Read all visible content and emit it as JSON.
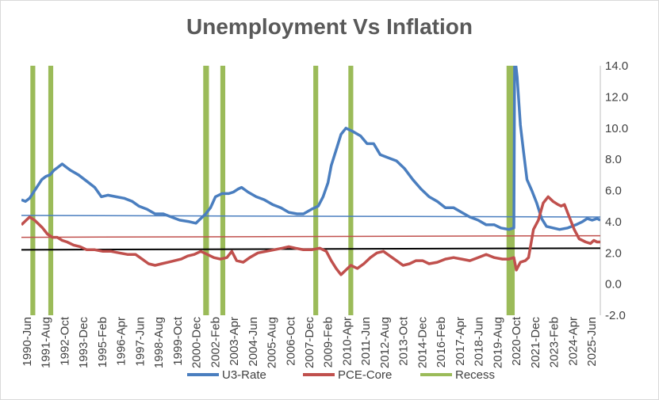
{
  "chart_data": {
    "type": "line",
    "title": "Unemployment Vs Inflation",
    "ylim": [
      -2.0,
      14.0
    ],
    "y_ticks": [
      "14.0",
      "12.0",
      "10.0",
      "8.0",
      "6.0",
      "4.0",
      "2.0",
      "0.0",
      "-2.0"
    ],
    "x_range": [
      1990.0,
      2025.5
    ],
    "x_tick_labels": [
      "1990-Jun",
      "1991-Aug",
      "1992-Oct",
      "1993-Dec",
      "1995-Feb",
      "1996-Apr",
      "1997-Jun",
      "1998-Aug",
      "1999-Oct",
      "2000-Dec",
      "2002-Feb",
      "2003-Apr",
      "2004-Jun",
      "2005-Aug",
      "2006-Oct",
      "2007-Dec",
      "2009-Feb",
      "2010-Apr",
      "2011-Jun",
      "2012-Aug",
      "2013-Oct",
      "2014-Dec",
      "2016-Feb",
      "2017-Apr",
      "2018-Jun",
      "2019-Aug",
      "2020-Oct",
      "2021-Dec",
      "2023-Feb",
      "2024-Apr",
      "2025-Jun"
    ],
    "series": [
      {
        "name": "U3-Rate",
        "color": "#4a7ebf",
        "points": [
          [
            1990.0,
            5.4
          ],
          [
            1990.25,
            5.3
          ],
          [
            1990.5,
            5.5
          ],
          [
            1990.75,
            5.9
          ],
          [
            1991.0,
            6.3
          ],
          [
            1991.25,
            6.7
          ],
          [
            1991.5,
            6.9
          ],
          [
            1991.75,
            7.0
          ],
          [
            1992.0,
            7.3
          ],
          [
            1992.25,
            7.5
          ],
          [
            1992.5,
            7.7
          ],
          [
            1992.75,
            7.5
          ],
          [
            1993.0,
            7.3
          ],
          [
            1993.5,
            7.0
          ],
          [
            1994.0,
            6.6
          ],
          [
            1994.5,
            6.2
          ],
          [
            1994.9,
            5.6
          ],
          [
            1995.3,
            5.7
          ],
          [
            1995.8,
            5.6
          ],
          [
            1996.3,
            5.5
          ],
          [
            1996.8,
            5.3
          ],
          [
            1997.2,
            5.0
          ],
          [
            1997.7,
            4.8
          ],
          [
            1998.2,
            4.5
          ],
          [
            1998.7,
            4.5
          ],
          [
            1999.2,
            4.3
          ],
          [
            1999.7,
            4.1
          ],
          [
            2000.3,
            4.0
          ],
          [
            2000.7,
            3.9
          ],
          [
            2001.0,
            4.2
          ],
          [
            2001.3,
            4.5
          ],
          [
            2001.6,
            4.9
          ],
          [
            2001.9,
            5.6
          ],
          [
            2002.3,
            5.8
          ],
          [
            2002.7,
            5.8
          ],
          [
            2003.0,
            5.9
          ],
          [
            2003.3,
            6.1
          ],
          [
            2003.5,
            6.2
          ],
          [
            2003.9,
            5.9
          ],
          [
            2004.4,
            5.6
          ],
          [
            2004.9,
            5.4
          ],
          [
            2005.4,
            5.1
          ],
          [
            2005.9,
            4.9
          ],
          [
            2006.4,
            4.6
          ],
          [
            2006.9,
            4.5
          ],
          [
            2007.3,
            4.5
          ],
          [
            2007.8,
            4.8
          ],
          [
            2008.2,
            5.0
          ],
          [
            2008.5,
            5.6
          ],
          [
            2008.8,
            6.5
          ],
          [
            2009.0,
            7.6
          ],
          [
            2009.3,
            8.6
          ],
          [
            2009.6,
            9.6
          ],
          [
            2009.9,
            10.0
          ],
          [
            2010.3,
            9.8
          ],
          [
            2010.8,
            9.5
          ],
          [
            2011.2,
            9.0
          ],
          [
            2011.6,
            9.0
          ],
          [
            2012.0,
            8.3
          ],
          [
            2012.5,
            8.1
          ],
          [
            2013.0,
            7.9
          ],
          [
            2013.5,
            7.4
          ],
          [
            2014.0,
            6.7
          ],
          [
            2014.5,
            6.1
          ],
          [
            2015.0,
            5.6
          ],
          [
            2015.5,
            5.3
          ],
          [
            2016.0,
            4.9
          ],
          [
            2016.5,
            4.9
          ],
          [
            2017.0,
            4.6
          ],
          [
            2017.5,
            4.3
          ],
          [
            2018.0,
            4.1
          ],
          [
            2018.5,
            3.8
          ],
          [
            2019.0,
            3.8
          ],
          [
            2019.4,
            3.6
          ],
          [
            2019.9,
            3.5
          ],
          [
            2020.2,
            3.6
          ],
          [
            2020.25,
            14.7
          ],
          [
            2020.4,
            13.3
          ],
          [
            2020.6,
            10.2
          ],
          [
            2020.8,
            8.4
          ],
          [
            2021.0,
            6.7
          ],
          [
            2021.3,
            6.0
          ],
          [
            2021.6,
            5.2
          ],
          [
            2021.9,
            4.2
          ],
          [
            2022.2,
            3.7
          ],
          [
            2022.6,
            3.6
          ],
          [
            2023.0,
            3.5
          ],
          [
            2023.5,
            3.6
          ],
          [
            2024.0,
            3.8
          ],
          [
            2024.4,
            4.0
          ],
          [
            2024.7,
            4.2
          ],
          [
            2025.0,
            4.1
          ],
          [
            2025.3,
            4.2
          ],
          [
            2025.5,
            4.1
          ]
        ]
      },
      {
        "name": "PCE-Core",
        "color": "#c0504d",
        "points": [
          [
            1990.0,
            3.8
          ],
          [
            1990.2,
            4.0
          ],
          [
            1990.5,
            4.3
          ],
          [
            1990.8,
            4.1
          ],
          [
            1991.0,
            3.9
          ],
          [
            1991.3,
            3.6
          ],
          [
            1991.6,
            3.2
          ],
          [
            1991.9,
            3.0
          ],
          [
            1992.2,
            3.0
          ],
          [
            1992.5,
            2.8
          ],
          [
            1992.8,
            2.7
          ],
          [
            1993.2,
            2.5
          ],
          [
            1993.6,
            2.4
          ],
          [
            1994.0,
            2.2
          ],
          [
            1994.5,
            2.2
          ],
          [
            1995.0,
            2.1
          ],
          [
            1995.5,
            2.1
          ],
          [
            1996.0,
            2.0
          ],
          [
            1996.5,
            1.9
          ],
          [
            1997.0,
            1.9
          ],
          [
            1997.4,
            1.6
          ],
          [
            1997.8,
            1.3
          ],
          [
            1998.2,
            1.2
          ],
          [
            1998.6,
            1.3
          ],
          [
            1999.0,
            1.4
          ],
          [
            1999.4,
            1.5
          ],
          [
            1999.8,
            1.6
          ],
          [
            2000.2,
            1.8
          ],
          [
            2000.6,
            1.9
          ],
          [
            2001.0,
            2.1
          ],
          [
            2001.4,
            1.9
          ],
          [
            2001.8,
            1.7
          ],
          [
            2002.2,
            1.6
          ],
          [
            2002.6,
            1.7
          ],
          [
            2002.9,
            2.1
          ],
          [
            2003.2,
            1.5
          ],
          [
            2003.6,
            1.4
          ],
          [
            2004.0,
            1.7
          ],
          [
            2004.5,
            2.0
          ],
          [
            2005.0,
            2.1
          ],
          [
            2005.5,
            2.2
          ],
          [
            2006.0,
            2.3
          ],
          [
            2006.4,
            2.4
          ],
          [
            2006.8,
            2.3
          ],
          [
            2007.3,
            2.2
          ],
          [
            2007.8,
            2.2
          ],
          [
            2008.3,
            2.3
          ],
          [
            2008.7,
            2.1
          ],
          [
            2009.0,
            1.5
          ],
          [
            2009.3,
            1.0
          ],
          [
            2009.6,
            0.6
          ],
          [
            2009.9,
            0.9
          ],
          [
            2010.2,
            1.2
          ],
          [
            2010.6,
            1.0
          ],
          [
            2011.0,
            1.3
          ],
          [
            2011.4,
            1.7
          ],
          [
            2011.8,
            2.0
          ],
          [
            2012.2,
            2.1
          ],
          [
            2012.6,
            1.8
          ],
          [
            2013.0,
            1.5
          ],
          [
            2013.4,
            1.2
          ],
          [
            2013.8,
            1.3
          ],
          [
            2014.2,
            1.5
          ],
          [
            2014.6,
            1.5
          ],
          [
            2015.0,
            1.3
          ],
          [
            2015.5,
            1.4
          ],
          [
            2016.0,
            1.6
          ],
          [
            2016.5,
            1.7
          ],
          [
            2017.0,
            1.6
          ],
          [
            2017.5,
            1.5
          ],
          [
            2018.0,
            1.7
          ],
          [
            2018.5,
            1.9
          ],
          [
            2019.0,
            1.7
          ],
          [
            2019.5,
            1.6
          ],
          [
            2019.9,
            1.6
          ],
          [
            2020.2,
            1.7
          ],
          [
            2020.35,
            0.9
          ],
          [
            2020.6,
            1.4
          ],
          [
            2020.9,
            1.5
          ],
          [
            2021.1,
            1.7
          ],
          [
            2021.4,
            3.5
          ],
          [
            2021.7,
            4.1
          ],
          [
            2022.0,
            5.2
          ],
          [
            2022.3,
            5.6
          ],
          [
            2022.6,
            5.3
          ],
          [
            2022.9,
            5.1
          ],
          [
            2023.1,
            5.0
          ],
          [
            2023.3,
            5.1
          ],
          [
            2023.6,
            4.3
          ],
          [
            2023.9,
            3.5
          ],
          [
            2024.2,
            2.9
          ],
          [
            2024.6,
            2.7
          ],
          [
            2024.9,
            2.6
          ],
          [
            2025.1,
            2.8
          ],
          [
            2025.3,
            2.7
          ],
          [
            2025.5,
            2.7
          ]
        ]
      }
    ],
    "reference_lines": [
      {
        "name": "u3-average-line",
        "y_start": 4.4,
        "y_end": 4.3,
        "color": "#4a7ebf"
      },
      {
        "name": "pce-average-line",
        "y_start": 3.0,
        "y_end": 3.1,
        "color": "#c0504d"
      },
      {
        "name": "pce-trend-line",
        "y_start": 2.2,
        "y_end": 2.3,
        "color": "#000000"
      }
    ],
    "recessions": [
      [
        1990.55,
        1990.85
      ],
      [
        1991.65,
        1991.95
      ],
      [
        2001.15,
        2001.5
      ],
      [
        2002.2,
        2002.5
      ],
      [
        2007.9,
        2008.2
      ],
      [
        2010.05,
        2010.35
      ],
      [
        2019.75,
        2020.25
      ]
    ],
    "legend": [
      {
        "label": "U3-Rate",
        "color": "#4a7ebf"
      },
      {
        "label": "PCE-Core",
        "color": "#c0504d"
      },
      {
        "label": "Recess",
        "color": "#9bbb59"
      }
    ],
    "recession_color": "#9bbb59",
    "grid": false,
    "legend_position": "bottom"
  }
}
